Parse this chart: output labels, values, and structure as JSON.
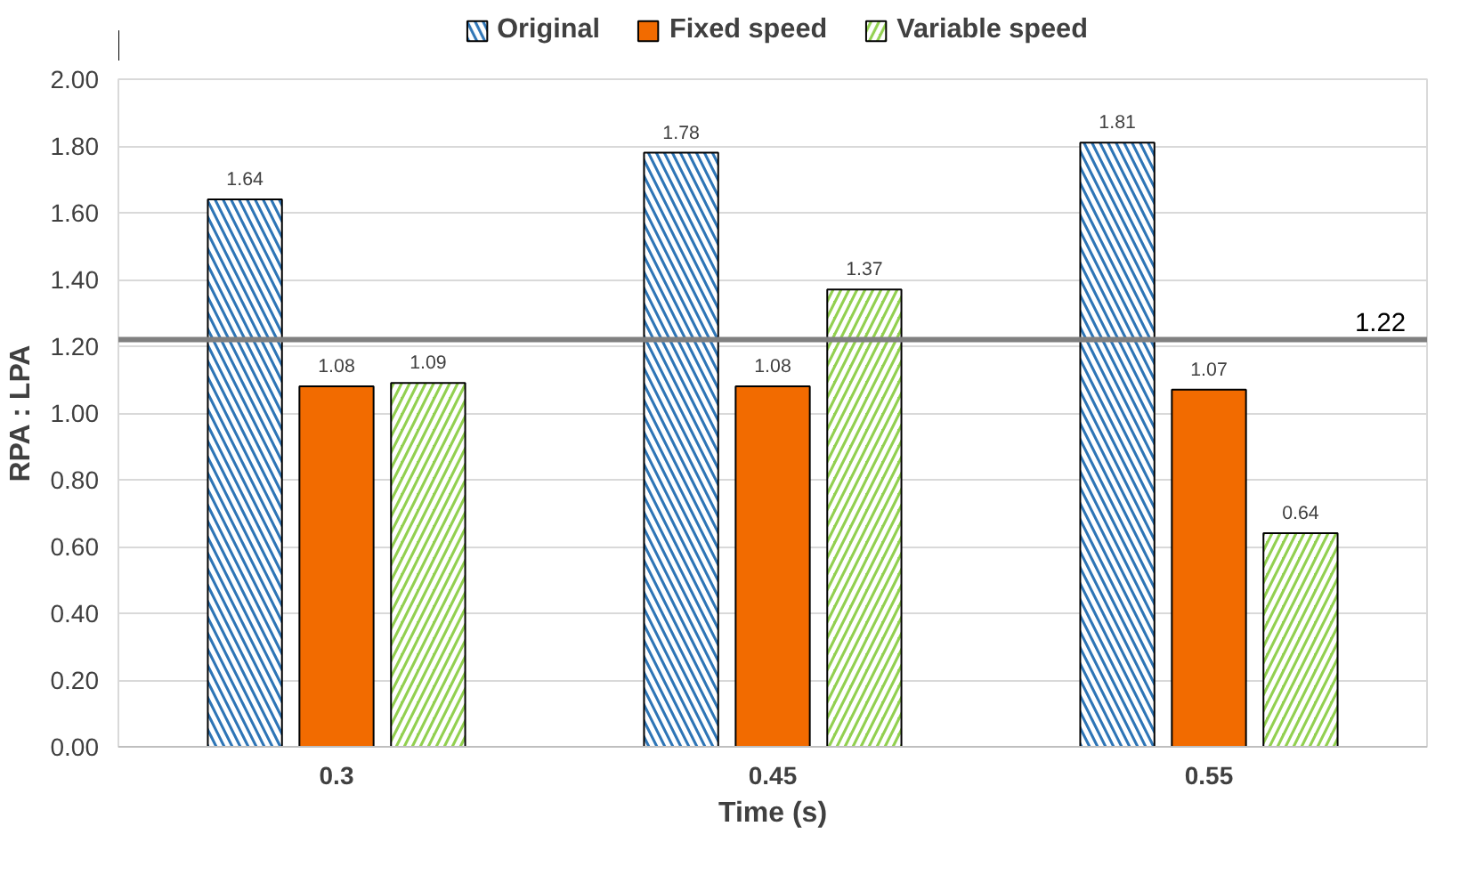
{
  "chart_data": {
    "type": "bar",
    "xlabel": "Time (s)",
    "ylabel": "RPA : LPA",
    "categories": [
      "0.3",
      "0.45",
      "0.55"
    ],
    "series": [
      {
        "name": "Original",
        "color": "#2e75b6",
        "values": [
          1.64,
          1.78,
          1.81
        ]
      },
      {
        "name": "Fixed speed",
        "color": "#f26b00",
        "values": [
          1.08,
          1.08,
          1.07
        ]
      },
      {
        "name": "Variable speed",
        "color": "#92d050",
        "values": [
          1.09,
          1.37,
          0.64
        ]
      }
    ],
    "ylim": [
      0,
      2
    ],
    "yticks": [
      {
        "value": 0,
        "label": "0.00"
      },
      {
        "value": 0.2,
        "label": "0.20"
      },
      {
        "value": 0.4,
        "label": "0.40"
      },
      {
        "value": 0.6,
        "label": "0.60"
      },
      {
        "value": 0.8,
        "label": "0.80"
      },
      {
        "value": 1,
        "label": "1.00"
      },
      {
        "value": 1.2,
        "label": "1.20"
      },
      {
        "value": 1.4,
        "label": "1.40"
      },
      {
        "value": 1.6,
        "label": "1.60"
      },
      {
        "value": 1.8,
        "label": "1.80"
      },
      {
        "value": 2,
        "label": "2.00"
      }
    ],
    "ref_lines": [
      {
        "axis": "y",
        "value": 1.22,
        "label": "1.22",
        "color": "#808080"
      }
    ],
    "data_labels": true,
    "grid": "y",
    "legend": "top"
  }
}
